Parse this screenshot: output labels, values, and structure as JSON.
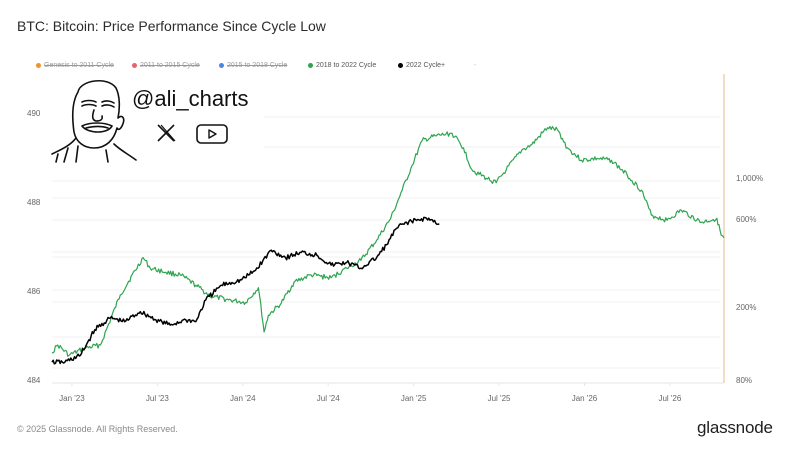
{
  "title": "BTC: Bitcoin: Price Performance Since Cycle Low",
  "legend": [
    {
      "label": "Genesis to 2011 Cycle",
      "color": "#f0932b",
      "enabled": false
    },
    {
      "label": "2011 to 2015 Cycle",
      "color": "#e5636c",
      "enabled": false
    },
    {
      "label": "2015 to 2018 Cycle",
      "color": "#4a86e8",
      "enabled": false
    },
    {
      "label": "2018 to 2022 Cycle",
      "color": "#2ea44f",
      "enabled": true
    },
    {
      "label": "2022 Cycle+",
      "color": "#000000",
      "enabled": true
    },
    {
      "label": "-",
      "color": "#cccccc",
      "enabled": false
    }
  ],
  "watermark": {
    "handle": "@ali_charts",
    "icons": [
      "x-logo-icon",
      "youtube-icon"
    ]
  },
  "footer": {
    "copyright": "© 2025 Glassnode. All Rights Reserved.",
    "brand": "glassnode"
  },
  "chart_data": {
    "type": "line",
    "title": "BTC: Bitcoin: Price Performance Since Cycle Low",
    "x_unit": "months since Jan '23",
    "x_ticks": [
      {
        "label": "Jan '23",
        "x": 0
      },
      {
        "label": "Jul '23",
        "x": 6
      },
      {
        "label": "Jan '24",
        "x": 12
      },
      {
        "label": "Jul '24",
        "x": 18
      },
      {
        "label": "Jan '25",
        "x": 24
      },
      {
        "label": "Jul '25",
        "x": 30
      },
      {
        "label": "Jan '26",
        "x": 36
      },
      {
        "label": "Jul '26",
        "x": 42
      }
    ],
    "xlim": [
      -1.4,
      45.8
    ],
    "left_axis": {
      "ticks": [
        "484",
        "486",
        "488",
        "490"
      ],
      "values": [
        484,
        486,
        488,
        490
      ],
      "range": [
        484,
        490.15
      ]
    },
    "right_axis": {
      "scale": "log",
      "ticks": [
        "80%",
        "200%",
        "600%",
        "1,000%"
      ],
      "values": [
        80,
        200,
        600,
        1000
      ],
      "range": [
        80,
        2500
      ]
    },
    "grid": true,
    "legend_position": "top-left",
    "series": [
      {
        "name": "2018 to 2022 Cycle",
        "color": "#2ea44f",
        "axis": "right",
        "x": [
          -1.4,
          -1.0,
          -0.2,
          0.9,
          2.0,
          3.4,
          5.0,
          5.5,
          6.6,
          7.6,
          8.7,
          9.7,
          11.0,
          12.2,
          13.1,
          13.5,
          13.8,
          14.7,
          15.6,
          16.8,
          18.2,
          19.3,
          20.3,
          21.4,
          22.4,
          23.2,
          23.9,
          24.6,
          25.6,
          26.7,
          27.5,
          28.1,
          29.1,
          29.8,
          30.5,
          31.6,
          32.3,
          33.4,
          34.1,
          34.8,
          35.8,
          36.9,
          37.9,
          39.0,
          40.0,
          40.7,
          41.8,
          42.8,
          44.2,
          45.3,
          45.6,
          45.8
        ],
        "y": [
          113,
          124,
          109,
          119,
          124,
          232,
          370,
          324,
          308,
          298,
          262,
          229,
          218,
          211,
          254,
          146,
          180,
          209,
          272,
          298,
          287,
          324,
          358,
          460,
          606,
          860,
          1175,
          1600,
          1700,
          1750,
          1460,
          1110,
          1000,
          944,
          1110,
          1420,
          1520,
          1880,
          1830,
          1460,
          1250,
          1280,
          1250,
          1040,
          860,
          630,
          590,
          670,
          575,
          605,
          490,
          475
        ]
      },
      {
        "name": "2022 Cycle+",
        "color": "#000000",
        "axis": "right",
        "x": [
          -1.4,
          -0.5,
          0.6,
          1.6,
          2.7,
          3.7,
          4.8,
          5.9,
          6.9,
          8.0,
          8.7,
          9.4,
          10.5,
          11.9,
          12.9,
          14.0,
          15.0,
          16.1,
          17.2,
          18.2,
          19.3,
          20.3,
          21.4,
          22.1,
          22.8,
          23.5,
          24.2,
          24.9,
          25.8
        ],
        "y": [
          100,
          100,
          109,
          150,
          174,
          166,
          188,
          170,
          159,
          170,
          166,
          218,
          262,
          280,
          316,
          406,
          370,
          395,
          382,
          337,
          348,
          324,
          370,
          435,
          534,
          576,
          589,
          606,
          565
        ]
      }
    ]
  }
}
